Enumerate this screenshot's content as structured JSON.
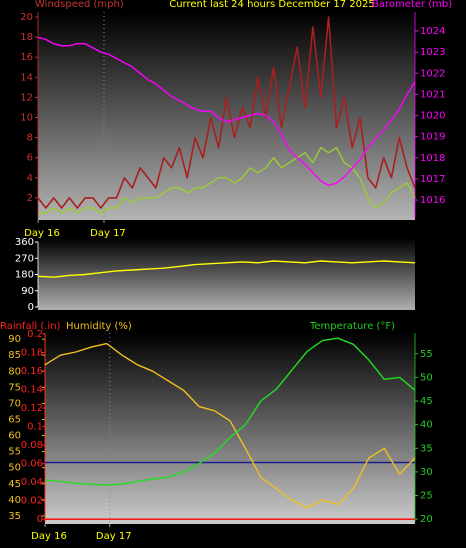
{
  "chart_data": [
    {
      "type": "line",
      "title": "Current last 24 hours December 17 2025",
      "title_color": "#ffff00",
      "ylabel": "Windspeed (mph)",
      "y2label": "Barometer (mb)",
      "axis_colors": {
        "y": "#c83232",
        "y2": "#ff00ff"
      },
      "x": [
        0,
        0.5,
        1,
        1.5,
        2,
        2.5,
        3,
        3.5,
        4,
        4.5,
        5,
        5.5,
        6,
        6.5,
        7,
        7.5,
        8,
        8.5,
        9,
        9.5,
        10,
        10.5,
        11,
        11.5,
        12,
        12.5,
        13,
        13.5,
        14,
        14.5,
        15,
        15.5,
        16,
        16.5,
        17,
        17.5,
        18,
        18.5,
        19,
        19.5,
        20,
        20.5,
        21,
        21.5,
        22,
        22.5,
        23,
        23.5,
        24
      ],
      "xlim": [
        0,
        24
      ],
      "xticks": [
        {
          "value": 0,
          "label": "Day 16"
        },
        {
          "value": 4.2,
          "label": "Day 17"
        }
      ],
      "ylim": [
        0,
        20.5
      ],
      "yticks": [
        2,
        4,
        6,
        8,
        10,
        12,
        14,
        16,
        18,
        20
      ],
      "y2lim": [
        1015.15,
        1024.9
      ],
      "y2ticks": [
        1016,
        1017,
        1018,
        1019,
        1020,
        1021,
        1022,
        1023,
        1024
      ],
      "series": [
        {
          "color": "#a82020",
          "axis": "y",
          "values": [
            2,
            1,
            2,
            1,
            2,
            1,
            2,
            2,
            1,
            2,
            2,
            4,
            3,
            5,
            4,
            3,
            6,
            5,
            7,
            4,
            8,
            6,
            10,
            7,
            12,
            8,
            11,
            9,
            14,
            10,
            15,
            9,
            13,
            17,
            11,
            19,
            12,
            20,
            9,
            12,
            7,
            10,
            4,
            3,
            6,
            4,
            8,
            5,
            3
          ]
        },
        {
          "color": "#9acd32",
          "axis": "y",
          "values": [
            0.5,
            0.5,
            1,
            0.5,
            1,
            0.5,
            1,
            1,
            0.5,
            1,
            1,
            2,
            1.5,
            2,
            2,
            2,
            2.5,
            3,
            3,
            2.5,
            3,
            3,
            3.5,
            4,
            4,
            3.5,
            4,
            5,
            4.5,
            5,
            6,
            5,
            5.5,
            6,
            6.5,
            5.5,
            7,
            6.5,
            7,
            5.5,
            5,
            4,
            2,
            1,
            1.5,
            2.5,
            3,
            3.5,
            2
          ]
        },
        {
          "color": "#ff00ff",
          "axis": "y2",
          "values": [
            1023.7,
            1023.6,
            1023.4,
            1023.3,
            1023.3,
            1023.4,
            1023.4,
            1023.2,
            1023.0,
            1022.9,
            1022.7,
            1022.5,
            1022.3,
            1022.0,
            1021.7,
            1021.5,
            1021.2,
            1020.9,
            1020.7,
            1020.5,
            1020.3,
            1020.2,
            1020.2,
            1019.9,
            1019.7,
            1019.8,
            1019.9,
            1020.0,
            1020.1,
            1020.0,
            1019.7,
            1019.1,
            1018.4,
            1018.0,
            1017.7,
            1017.3,
            1016.9,
            1016.7,
            1016.8,
            1017.1,
            1017.5,
            1017.9,
            1018.5,
            1018.9,
            1019.3,
            1019.8,
            1020.3,
            1021.0,
            1021.6
          ]
        }
      ]
    },
    {
      "type": "line",
      "axis_colors": {
        "y": "#ffffff"
      },
      "x": [
        0,
        1,
        2,
        3,
        4,
        5,
        6,
        7,
        8,
        9,
        10,
        11,
        12,
        13,
        14,
        15,
        16,
        17,
        18,
        19,
        20,
        21,
        22,
        23,
        24
      ],
      "xlim": [
        0,
        24
      ],
      "ylim": [
        0,
        360
      ],
      "yticks": [
        0,
        90,
        180,
        270,
        360
      ],
      "series": [
        {
          "color": "#ffff00",
          "axis": "y",
          "values": [
            170,
            165,
            175,
            180,
            190,
            200,
            205,
            210,
            215,
            225,
            235,
            240,
            245,
            250,
            245,
            255,
            250,
            245,
            255,
            250,
            245,
            250,
            255,
            250,
            245
          ]
        }
      ]
    },
    {
      "type": "line",
      "ylabel": "Humidity (%)",
      "y2label": "Temperature (°F)",
      "y3label": "Rainfall (.in)",
      "axis_colors": {
        "y": "#f0c020",
        "y2": "#22cc22",
        "y3": "#ff2020"
      },
      "x": [
        0,
        1,
        2,
        3,
        4,
        5,
        6,
        7,
        8,
        9,
        10,
        11,
        12,
        13,
        14,
        15,
        16,
        17,
        18,
        19,
        20,
        21,
        22,
        23,
        24
      ],
      "xlim": [
        0,
        24
      ],
      "xticks": [
        {
          "value": 0,
          "label": "Day 16"
        },
        {
          "value": 4.2,
          "label": "Day 17"
        }
      ],
      "ylim": [
        33.1,
        91.9
      ],
      "yticks": [
        35,
        40,
        45,
        50,
        55,
        60,
        65,
        70,
        75,
        80,
        85,
        90
      ],
      "y2lim": [
        19.4,
        59.4
      ],
      "y2ticks": [
        20,
        25,
        30,
        35,
        40,
        45,
        50,
        55
      ],
      "y3lim": [
        -0.003,
        0.201
      ],
      "y3ticks": [
        0,
        0.02,
        0.04,
        0.06,
        0.08,
        0.1,
        0.12,
        0.14,
        0.16,
        0.18,
        0.2
      ],
      "hline": {
        "value": 32,
        "axis": "y2",
        "color": "#1c1c8c"
      },
      "series": [
        {
          "color": "#f0c020",
          "axis": "y",
          "values": [
            82,
            85,
            86,
            87.5,
            88.6,
            85,
            82,
            80,
            77,
            74,
            69,
            67.7,
            64.6,
            56,
            47,
            43.5,
            40,
            37.5,
            40,
            38.5,
            43.5,
            53,
            56,
            48,
            53
          ]
        },
        {
          "color": "#22dd22",
          "axis": "y2",
          "values": [
            28.3,
            28,
            27.6,
            27.4,
            27.2,
            27.4,
            28,
            28.5,
            28.9,
            30,
            31.8,
            34,
            37.3,
            40,
            45,
            47.5,
            51.5,
            55.5,
            57.8,
            58.3,
            57,
            53.7,
            49.6,
            50,
            47.3
          ]
        },
        {
          "color": "#ff0000",
          "axis": "y3",
          "values": [
            0,
            0,
            0,
            0,
            0,
            0,
            0,
            0,
            0,
            0,
            0,
            0,
            0,
            0,
            0,
            0,
            0,
            0,
            0,
            0,
            0,
            0,
            0,
            0,
            0
          ]
        }
      ]
    }
  ]
}
